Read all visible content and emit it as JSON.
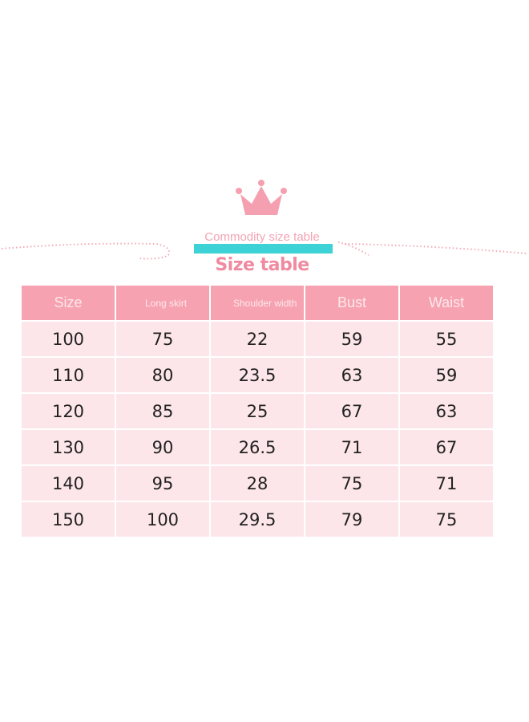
{
  "heading": {
    "subtitle": "Commodity size table",
    "title": "Size table"
  },
  "colors": {
    "header": "#f7a2b1",
    "row": "#fde6ea",
    "accent_bar": "#3dd3d6",
    "title": "#f08aa0"
  },
  "table": {
    "headers": [
      "Size",
      "Long skirt",
      "Shoulder width",
      "Bust",
      "Waist"
    ],
    "rows": [
      [
        "100",
        "75",
        "22",
        "59",
        "55"
      ],
      [
        "110",
        "80",
        "23.5",
        "63",
        "59"
      ],
      [
        "120",
        "85",
        "25",
        "67",
        "63"
      ],
      [
        "130",
        "90",
        "26.5",
        "71",
        "67"
      ],
      [
        "140",
        "95",
        "28",
        "75",
        "71"
      ],
      [
        "150",
        "100",
        "29.5",
        "79",
        "75"
      ]
    ]
  }
}
